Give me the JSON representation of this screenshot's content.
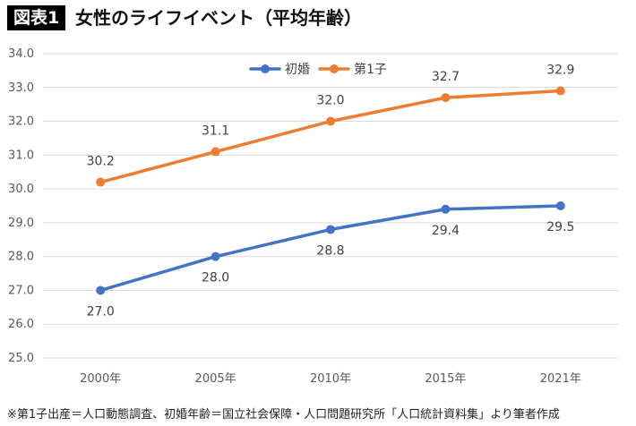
{
  "header": {
    "tag": "図表1",
    "title": "女性のライフイベント（平均年齢）"
  },
  "chart_data": {
    "type": "line",
    "categories": [
      "2000年",
      "2005年",
      "2010年",
      "2015年",
      "2021年"
    ],
    "series": [
      {
        "name": "初婚",
        "values": [
          27.0,
          28.0,
          28.8,
          29.4,
          29.5
        ],
        "color": "#4472C4",
        "label_position": "below"
      },
      {
        "name": "第1子",
        "values": [
          30.2,
          31.1,
          32.0,
          32.7,
          32.9
        ],
        "color": "#ED7D31",
        "label_position": "above"
      }
    ],
    "ylim": [
      25.0,
      34.0
    ],
    "yticks": [
      25.0,
      26.0,
      27.0,
      28.0,
      29.0,
      30.0,
      31.0,
      32.0,
      33.0,
      34.0
    ],
    "grid": true,
    "legend": "top-center",
    "title": "",
    "xlabel": "",
    "ylabel": ""
  },
  "footnote": "※第1子出産＝人口動態調査、初婚年齢＝国立社会保障・人口問題研究所「人口統計資料集」より筆者作成"
}
